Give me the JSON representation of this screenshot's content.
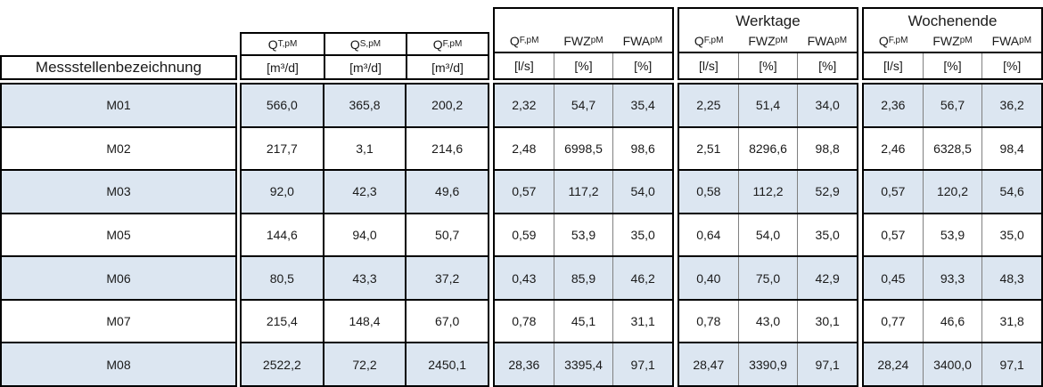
{
  "header": {
    "row_label": "Messstellenbezeichnung",
    "groups": {
      "volumes": {
        "title": "",
        "columns": [
          {
            "base": "Q",
            "sub": "T,pM",
            "unit": "[m³/d]"
          },
          {
            "base": "Q",
            "sub": "S,pM",
            "unit": "[m³/d]"
          },
          {
            "base": "Q",
            "sub": "F,pM",
            "unit": "[m³/d]"
          }
        ]
      },
      "overall": {
        "title": "",
        "columns": [
          {
            "base": "Q",
            "sub": "F,pM",
            "unit": "[l/s]"
          },
          {
            "base": "FWZ",
            "sub": "pM",
            "unit": "[%]"
          },
          {
            "base": "FWA",
            "sub": "pM",
            "unit": "[%]"
          }
        ]
      },
      "werktage": {
        "title": "Werktage",
        "columns": [
          {
            "base": "Q",
            "sub": "F,pM",
            "unit": "[l/s]"
          },
          {
            "base": "FWZ",
            "sub": "pM",
            "unit": "[%]"
          },
          {
            "base": "FWA",
            "sub": "pM",
            "unit": "[%]"
          }
        ]
      },
      "wochenende": {
        "title": "Wochenende",
        "columns": [
          {
            "base": "Q",
            "sub": "F,pM",
            "unit": "[l/s]"
          },
          {
            "base": "FWZ",
            "sub": "pM",
            "unit": "[%]"
          },
          {
            "base": "FWA",
            "sub": "pM",
            "unit": "[%]"
          }
        ]
      }
    }
  },
  "chart_data": {
    "type": "table",
    "title": "",
    "columns": [
      "Messstellenbezeichnung",
      "Q_T,pM [m³/d]",
      "Q_S,pM [m³/d]",
      "Q_F,pM [m³/d]",
      "Q_F,pM [l/s]",
      "FWZ_pM [%]",
      "FWA_pM [%]",
      "Werktage Q_F,pM [l/s]",
      "Werktage FWZ_pM [%]",
      "Werktage FWA_pM [%]",
      "Wochenende Q_F,pM [l/s]",
      "Wochenende FWZ_pM [%]",
      "Wochenende FWA_pM [%]"
    ],
    "rows": [
      [
        "M01",
        "566,0",
        "365,8",
        "200,2",
        "2,32",
        "54,7",
        "35,4",
        "2,25",
        "51,4",
        "34,0",
        "2,36",
        "56,7",
        "36,2"
      ],
      [
        "M02",
        "217,7",
        "3,1",
        "214,6",
        "2,48",
        "6998,5",
        "98,6",
        "2,51",
        "8296,6",
        "98,8",
        "2,46",
        "6328,5",
        "98,4"
      ],
      [
        "M03",
        "92,0",
        "42,3",
        "49,6",
        "0,57",
        "117,2",
        "54,0",
        "0,58",
        "112,2",
        "52,9",
        "0,57",
        "120,2",
        "54,6"
      ],
      [
        "M05",
        "144,6",
        "94,0",
        "50,7",
        "0,59",
        "53,9",
        "35,0",
        "0,64",
        "54,0",
        "35,0",
        "0,57",
        "53,9",
        "35,0"
      ],
      [
        "M06",
        "80,5",
        "43,3",
        "37,2",
        "0,43",
        "85,9",
        "46,2",
        "0,40",
        "75,0",
        "42,9",
        "0,45",
        "93,3",
        "48,3"
      ],
      [
        "M07",
        "215,4",
        "148,4",
        "67,0",
        "0,78",
        "45,1",
        "31,1",
        "0,78",
        "43,0",
        "30,1",
        "0,77",
        "46,6",
        "31,8"
      ],
      [
        "M08",
        "2522,2",
        "72,2",
        "2450,1",
        "28,36",
        "3395,4",
        "97,1",
        "28,47",
        "3390,9",
        "97,1",
        "28,24",
        "3400,0",
        "97,1"
      ]
    ]
  },
  "colors": {
    "row_alternate": "#dce6f1",
    "border_strong": "#000000",
    "border_light": "#808080"
  }
}
